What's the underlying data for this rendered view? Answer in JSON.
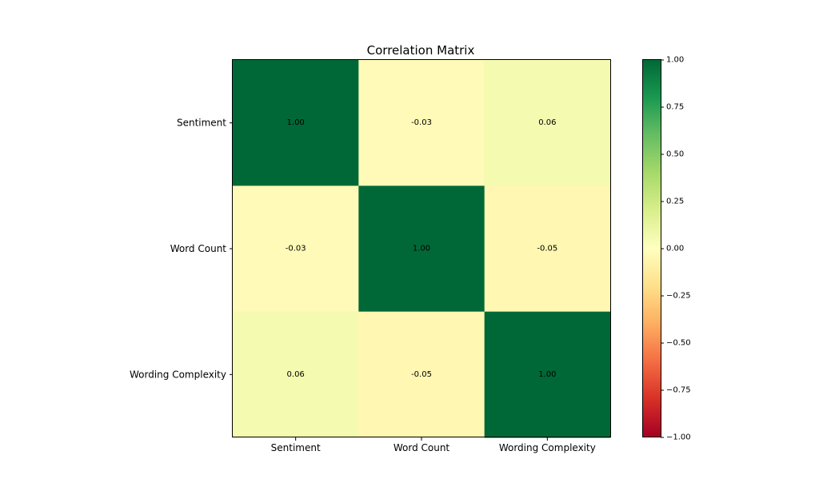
{
  "chart_data": {
    "type": "heatmap",
    "title": "Correlation Matrix",
    "rows": [
      "Sentiment",
      "Word Count",
      "Wording Complexity"
    ],
    "columns": [
      "Sentiment",
      "Word Count",
      "Wording Complexity"
    ],
    "values": [
      [
        1.0,
        -0.03,
        0.06
      ],
      [
        -0.03,
        1.0,
        -0.05
      ],
      [
        0.06,
        -0.05,
        1.0
      ]
    ],
    "value_labels": [
      [
        "1.00",
        "-0.03",
        "0.06"
      ],
      [
        "-0.03",
        "1.00",
        "-0.05"
      ],
      [
        "0.06",
        "-0.05",
        "1.00"
      ]
    ],
    "colormap": "RdYlGn",
    "vmin": -1.0,
    "vmax": 1.0,
    "colorbar": {
      "ticks": [
        1.0,
        0.75,
        0.5,
        0.25,
        0.0,
        -0.25,
        -0.5,
        -0.75,
        -1.0
      ],
      "tick_labels": [
        "1.00",
        "0.75",
        "0.50",
        "0.25",
        "0.00",
        "−0.25",
        "−0.50",
        "−0.75",
        "−1.00"
      ]
    },
    "grid": false
  }
}
